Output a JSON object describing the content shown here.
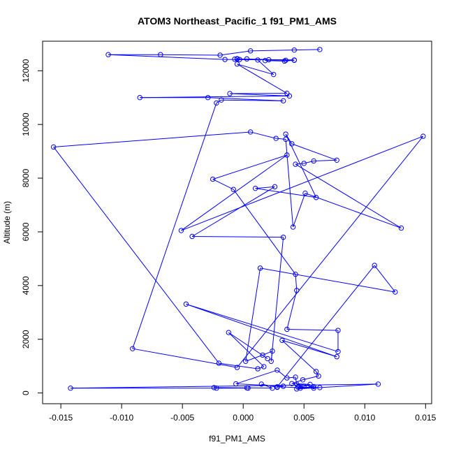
{
  "chart_data": {
    "type": "line",
    "title": "ATOM3 Northeast_Pacific_1 f91_PM1_AMS",
    "xlabel": "f91_PM1_AMS",
    "ylabel": "Altitude (m)",
    "xlim": [
      -0.0165,
      0.0155
    ],
    "ylim": [
      -400,
      13100
    ],
    "xticks": [
      -0.015,
      -0.01,
      -0.005,
      0.0,
      0.005,
      0.01,
      0.015
    ],
    "xtick_labels": [
      "-0.015",
      "-0.010",
      "-0.005",
      "0.000",
      "0.005",
      "0.010",
      "0.015"
    ],
    "yticks": [
      0,
      2000,
      4000,
      6000,
      8000,
      10000,
      12000
    ],
    "ytick_labels": [
      "0",
      "2000",
      "4000",
      "6000",
      "8000",
      "10000",
      "12000"
    ],
    "grid": false,
    "series_color": "#0000ff",
    "marker": "open-circle",
    "series": [
      {
        "points": [
          [
            0.0063,
            12790
          ],
          [
            0.0042,
            12770
          ],
          [
            0.0006,
            12740
          ],
          [
            -0.0019,
            12580
          ],
          [
            -0.0068,
            12600
          ],
          [
            -0.0111,
            12600
          ],
          [
            -0.0015,
            12420
          ],
          [
            0.0042,
            12400
          ],
          [
            -0.0007,
            12430
          ],
          [
            0.0021,
            12410
          ],
          [
            0.0018,
            12380
          ],
          [
            0.0034,
            12360
          ],
          [
            0.0042,
            12390
          ],
          [
            -0.0005,
            12440
          ],
          [
            0.0035,
            12390
          ],
          [
            0.0003,
            12440
          ],
          [
            -0.0003,
            12420
          ],
          [
            -0.0005,
            12450
          ],
          [
            0.0012,
            12400
          ],
          [
            0.0025,
            11860
          ],
          [
            -0.0005,
            12250
          ],
          [
            0.0036,
            11160
          ],
          [
            -0.0011,
            11150
          ],
          [
            0.0038,
            11060
          ],
          [
            -0.0085,
            11000
          ],
          [
            -0.0029,
            11000
          ],
          [
            0.0033,
            10880
          ],
          [
            -0.0018,
            10910
          ],
          [
            -0.0022,
            10800
          ],
          [
            -0.0091,
            1650
          ],
          [
            -0.0005,
            950
          ],
          [
            0.0148,
            9560
          ],
          [
            -0.0051,
            6050
          ],
          [
            0.0036,
            8860
          ],
          [
            -0.0025,
            7960
          ],
          [
            -0.0008,
            7580
          ],
          [
            0.0043,
            4420
          ],
          [
            0.0044,
            3820
          ],
          [
            0.0036,
            2370
          ],
          [
            0.0078,
            2330
          ],
          [
            0.0078,
            1540
          ],
          [
            -0.0047,
            3310
          ],
          [
            0.0077,
            1350
          ],
          [
            0.0032,
            1960
          ],
          [
            0.006,
            800
          ],
          [
            0.0062,
            630
          ],
          [
            0.0049,
            490
          ],
          [
            0.004,
            350
          ],
          [
            0.0055,
            320
          ],
          [
            0.005,
            250
          ],
          [
            0.0045,
            220
          ],
          [
            0.0063,
            200
          ],
          [
            0.0047,
            180
          ],
          [
            0.0044,
            150
          ],
          [
            0.0111,
            330
          ],
          [
            -0.0142,
            180
          ],
          [
            0.0004,
            180
          ],
          [
            0.0003,
            190
          ],
          [
            -0.0022,
            180
          ],
          [
            -0.0024,
            200
          ],
          [
            0.0024,
            180
          ],
          [
            0.0015,
            330
          ],
          [
            0.0028,
            210
          ],
          [
            0.0033,
            250
          ],
          [
            -0.0006,
            340
          ],
          [
            0.0028,
            850
          ],
          [
            0.0036,
            560
          ],
          [
            0.0043,
            590
          ],
          [
            0.0044,
            330
          ],
          [
            0.0058,
            240
          ],
          [
            0.0058,
            180
          ],
          [
            0.0028,
            230
          ],
          [
            0.0108,
            4750
          ],
          [
            0.0125,
            3760
          ],
          [
            0.0014,
            4650
          ],
          [
            0.0002,
            1180
          ],
          [
            0.0016,
            1410
          ],
          [
            0.0024,
            1560
          ],
          [
            0.0023,
            1180
          ],
          [
            0.0033,
            5800
          ],
          [
            -0.0042,
            5830
          ],
          [
            0.0026,
            7680
          ],
          [
            0.001,
            7620
          ],
          [
            0.006,
            7280
          ],
          [
            0.0035,
            9640
          ],
          [
            0.004,
            9280
          ],
          [
            0.0077,
            8670
          ],
          [
            0.0058,
            8640
          ],
          [
            0.005,
            8550
          ],
          [
            0.0043,
            8520
          ],
          [
            0.013,
            6140
          ],
          [
            0.0051,
            7440
          ],
          [
            0.0041,
            6180
          ],
          [
            0.0035,
            9450
          ],
          [
            0.0027,
            9480
          ],
          [
            0.0006,
            9720
          ],
          [
            -0.0156,
            9160
          ],
          [
            -0.002,
            1110
          ],
          [
            0.0012,
            900
          ],
          [
            0.0017,
            980
          ],
          [
            -0.0012,
            2250
          ],
          [
            0.002,
            1280
          ]
        ]
      }
    ]
  }
}
